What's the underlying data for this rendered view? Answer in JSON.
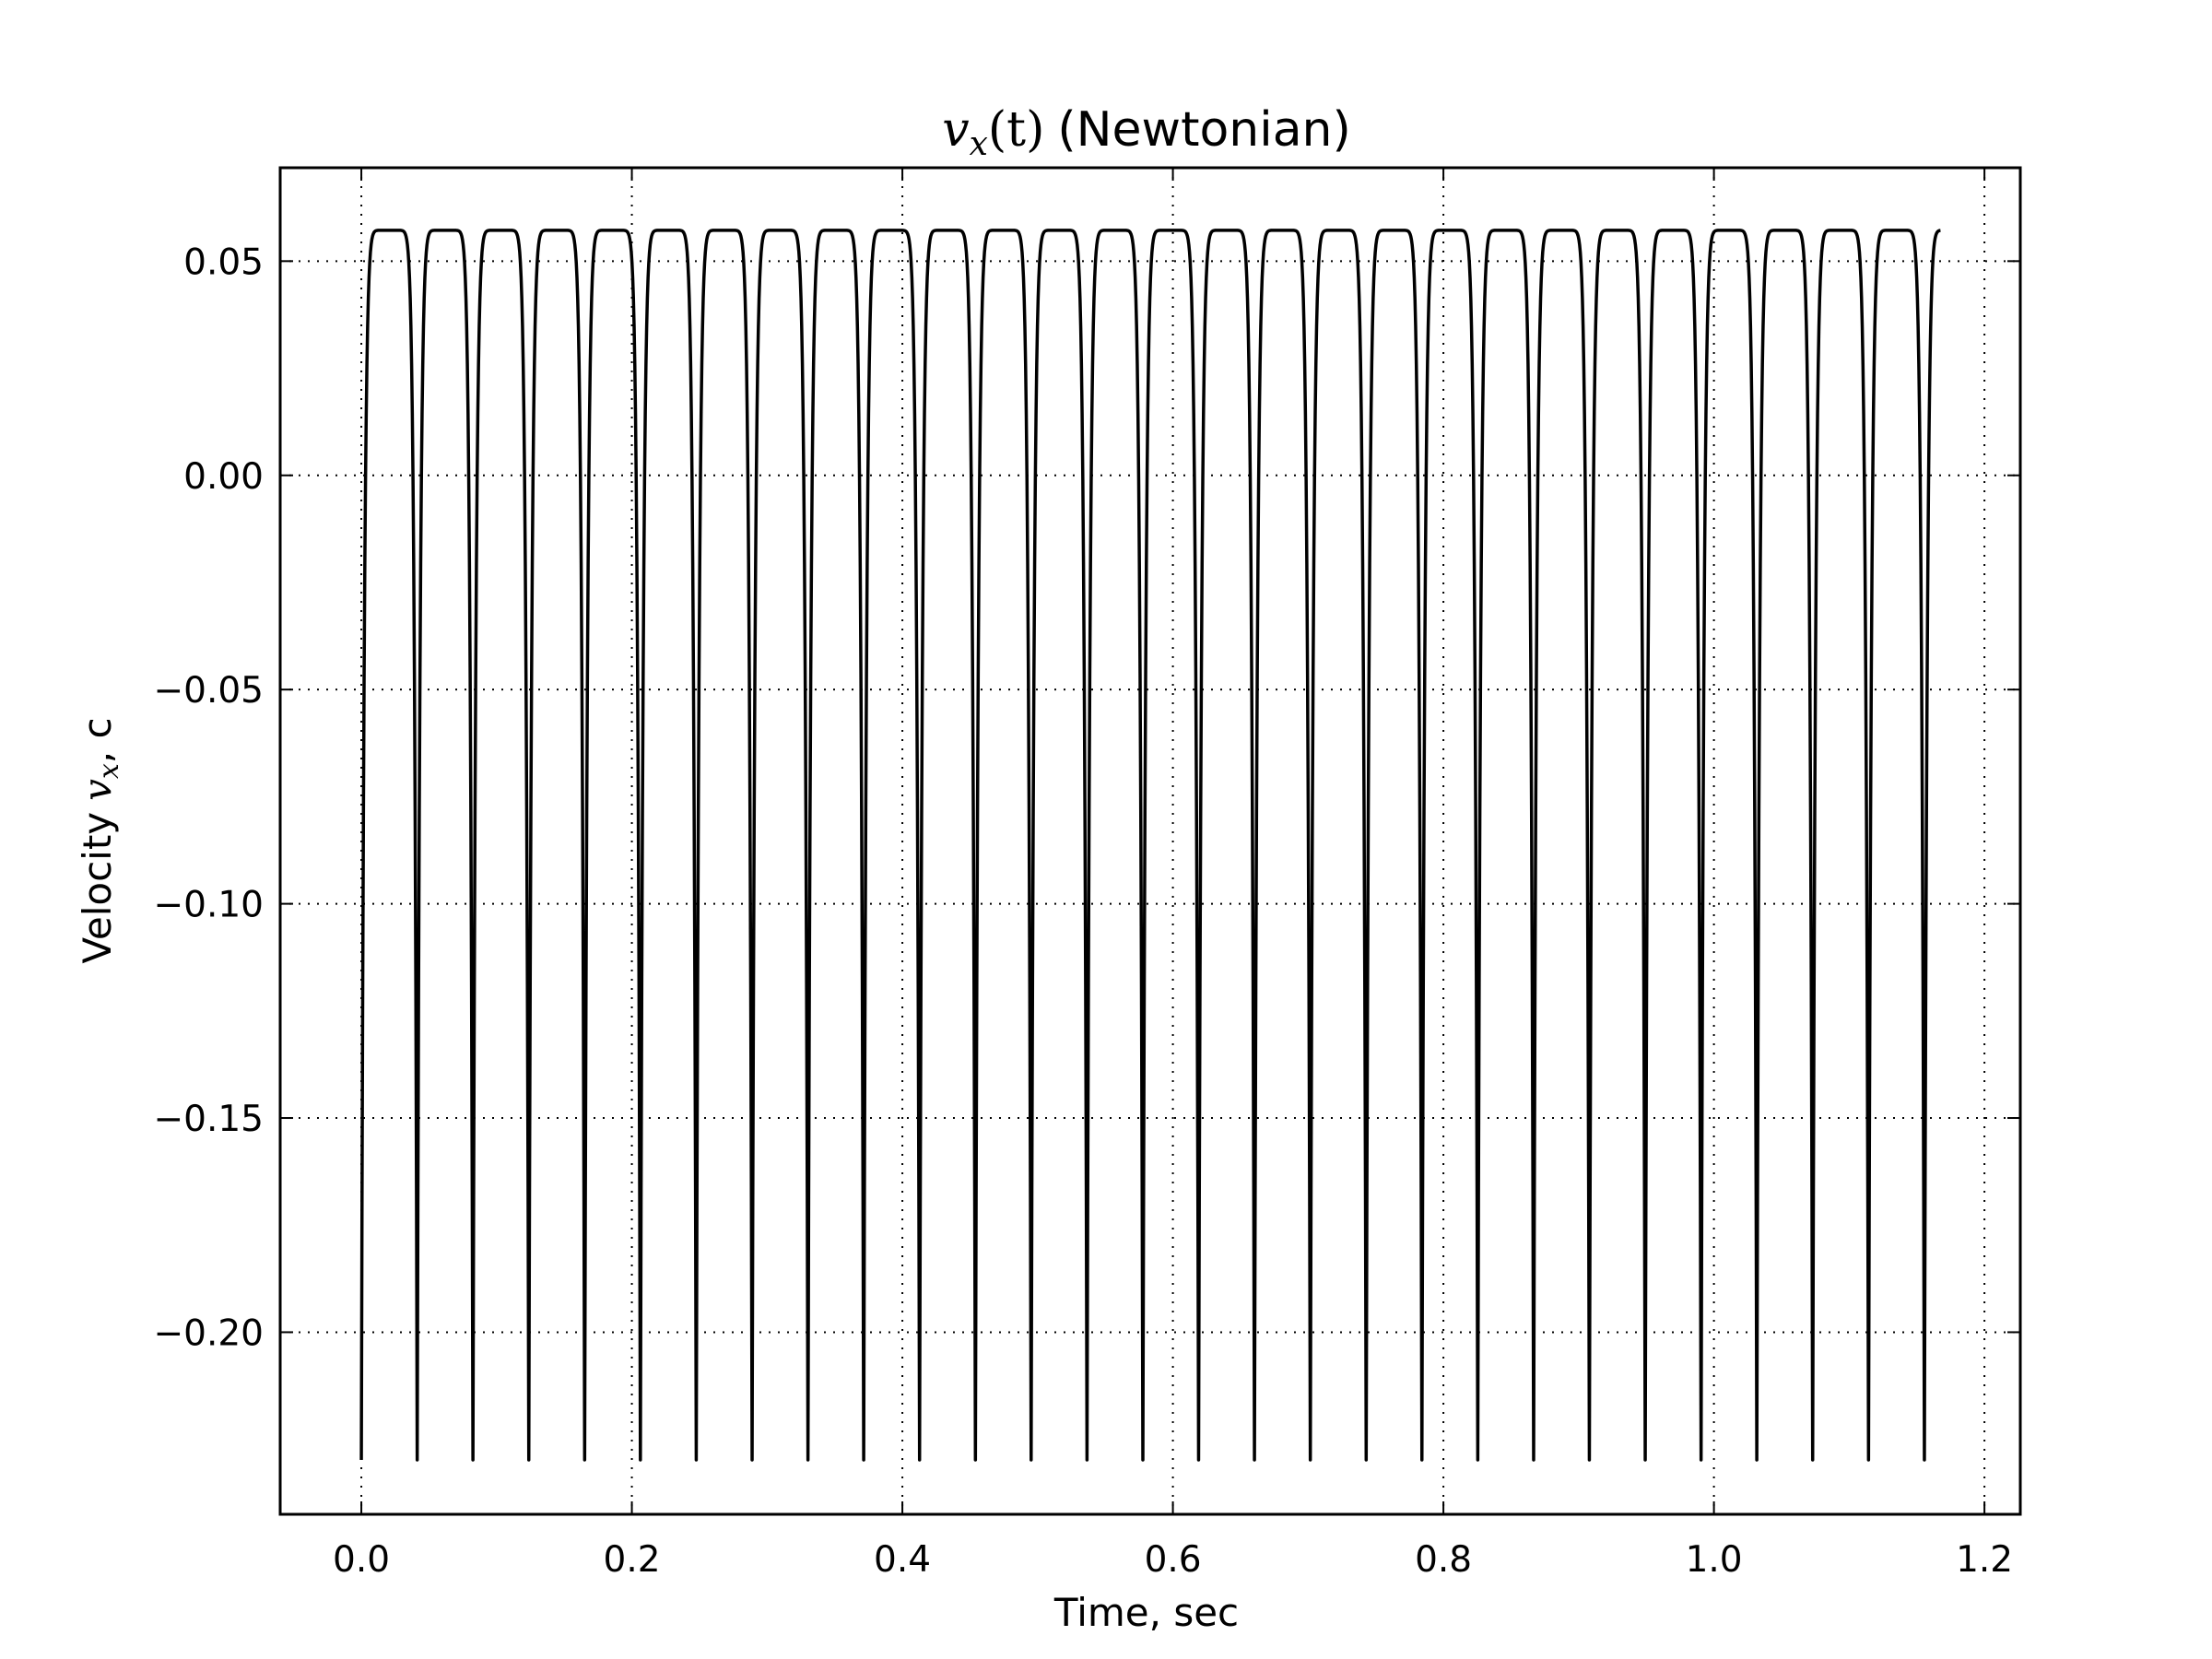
{
  "chart_data": {
    "type": "line",
    "title": {
      "math": "v",
      "math_sub": "x",
      "math_args": "(t)",
      "text": "(Newtonian)"
    },
    "xlabel": "Time, sec",
    "ylabel": {
      "prefix": "Velocity",
      "math": "v",
      "math_sub": "x",
      "suffix": ", c"
    },
    "xlim": [
      -0.06,
      1.2265
    ],
    "ylim": [
      -0.2425,
      0.0718
    ],
    "xticks": [
      0.0,
      0.2,
      0.4,
      0.6,
      0.8,
      1.0,
      1.2
    ],
    "xtick_labels": [
      "0.0",
      "0.2",
      "0.4",
      "0.6",
      "0.8",
      "1.0",
      "1.2"
    ],
    "yticks": [
      0.05,
      0.0,
      -0.05,
      -0.1,
      -0.15,
      -0.2
    ],
    "ytick_labels": [
      "0.05",
      "0.00",
      "−0.05",
      "−0.10",
      "−0.15",
      "−0.20"
    ],
    "grid": true,
    "line_color": "#000000",
    "series": [
      {
        "trough_times": [
          0.0,
          0.0413,
          0.0825,
          0.1238,
          0.1651,
          0.2063,
          0.2476,
          0.2889,
          0.3302,
          0.3714,
          0.4127,
          0.454,
          0.4952,
          0.5365,
          0.5778,
          0.619,
          0.6603,
          0.7016,
          0.7429,
          0.7841,
          0.8254,
          0.8667,
          0.9079,
          0.9492,
          0.9905,
          1.0317,
          1.073,
          1.1143,
          1.1556
        ],
        "min_value": -0.2298,
        "max_value": 0.0572,
        "end_time": 1.1675,
        "end_value": 0.0523
      }
    ]
  }
}
